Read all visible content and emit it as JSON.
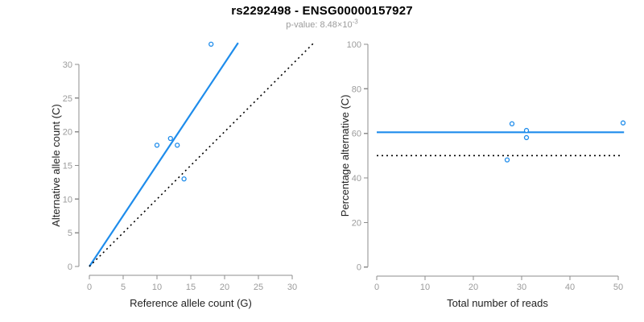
{
  "header": {
    "title": "rs2292498 - ENSG00000157927",
    "subtitle_prefix": "p-value: 8.48×10",
    "subtitle_exponent": "-3"
  },
  "colors": {
    "accent_blue": "#1e8ceb",
    "identity_black": "#000000",
    "axis_gray": "#8c8c8c",
    "tick_text_gray": "#9b9b9b",
    "label_dark": "#1f1f1f",
    "background": "#ffffff"
  },
  "chart_data": [
    {
      "type": "scatter",
      "panel": "left",
      "xlabel": "Reference allele count (G)",
      "ylabel": "Alternative allele count (C)",
      "xlim": [
        0,
        30
      ],
      "ylim": [
        0,
        30
      ],
      "x_ticks": [
        0,
        5,
        10,
        15,
        20,
        25,
        30
      ],
      "y_ticks": [
        0,
        5,
        10,
        15,
        20,
        25,
        30
      ],
      "grid": false,
      "points": [
        [
          10,
          18
        ],
        [
          12,
          19
        ],
        [
          13,
          18
        ],
        [
          14,
          13
        ],
        [
          18,
          33
        ]
      ],
      "lines": [
        {
          "name": "fitted-line",
          "style": "solid",
          "color_key": "accent_blue",
          "from": [
            0,
            0
          ],
          "to": [
            22,
            33.2
          ]
        },
        {
          "name": "identity-line",
          "style": "dotted",
          "color_key": "identity_black",
          "from": [
            0,
            0
          ],
          "to": [
            33.2,
            33.2
          ]
        }
      ]
    },
    {
      "type": "scatter",
      "panel": "right",
      "xlabel": "Total number of reads",
      "ylabel": "Percentage alternative (C)",
      "xlim": [
        0,
        50
      ],
      "ylim": [
        0,
        100
      ],
      "x_ticks": [
        0,
        10,
        20,
        30,
        40,
        50
      ],
      "y_ticks": [
        0,
        20,
        40,
        60,
        80,
        100
      ],
      "grid": false,
      "points": [
        [
          28,
          64.3
        ],
        [
          31,
          61.3
        ],
        [
          31,
          58.1
        ],
        [
          27,
          48.1
        ],
        [
          51,
          64.7
        ]
      ],
      "lines": [
        {
          "name": "mean-percentage-line",
          "style": "solid",
          "color_key": "accent_blue",
          "from": [
            0,
            60.5
          ],
          "to": [
            51.2,
            60.5
          ]
        },
        {
          "name": "fifty-percent-line",
          "style": "dotted",
          "color_key": "identity_black",
          "from": [
            0,
            50
          ],
          "to": [
            50.6,
            50
          ]
        }
      ]
    }
  ]
}
